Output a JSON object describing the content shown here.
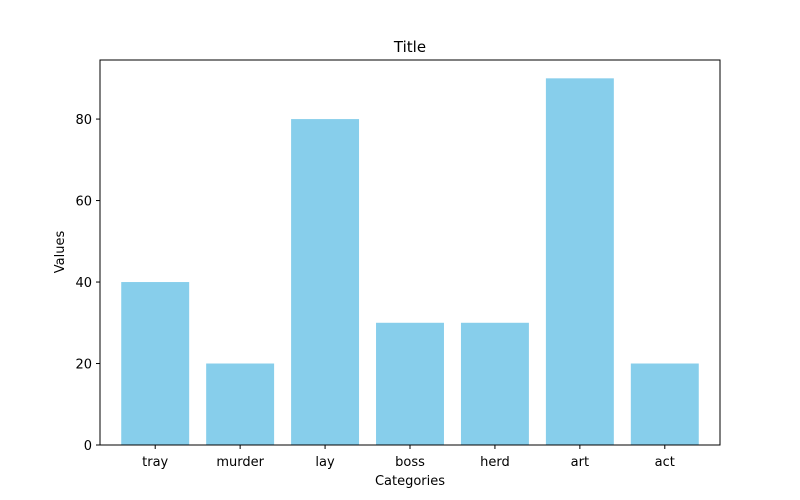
{
  "chart_data": {
    "type": "bar",
    "title": "Title",
    "xlabel": "Categories",
    "ylabel": "Values",
    "categories": [
      "tray",
      "murder",
      "lay",
      "boss",
      "herd",
      "art",
      "act"
    ],
    "values": [
      40,
      20,
      80,
      30,
      30,
      90,
      20
    ],
    "ylim": [
      0,
      94.5
    ],
    "yticks": [
      0,
      20,
      40,
      60,
      80
    ],
    "bar_color": "#87ceeb",
    "grid": false,
    "legend": "none"
  }
}
